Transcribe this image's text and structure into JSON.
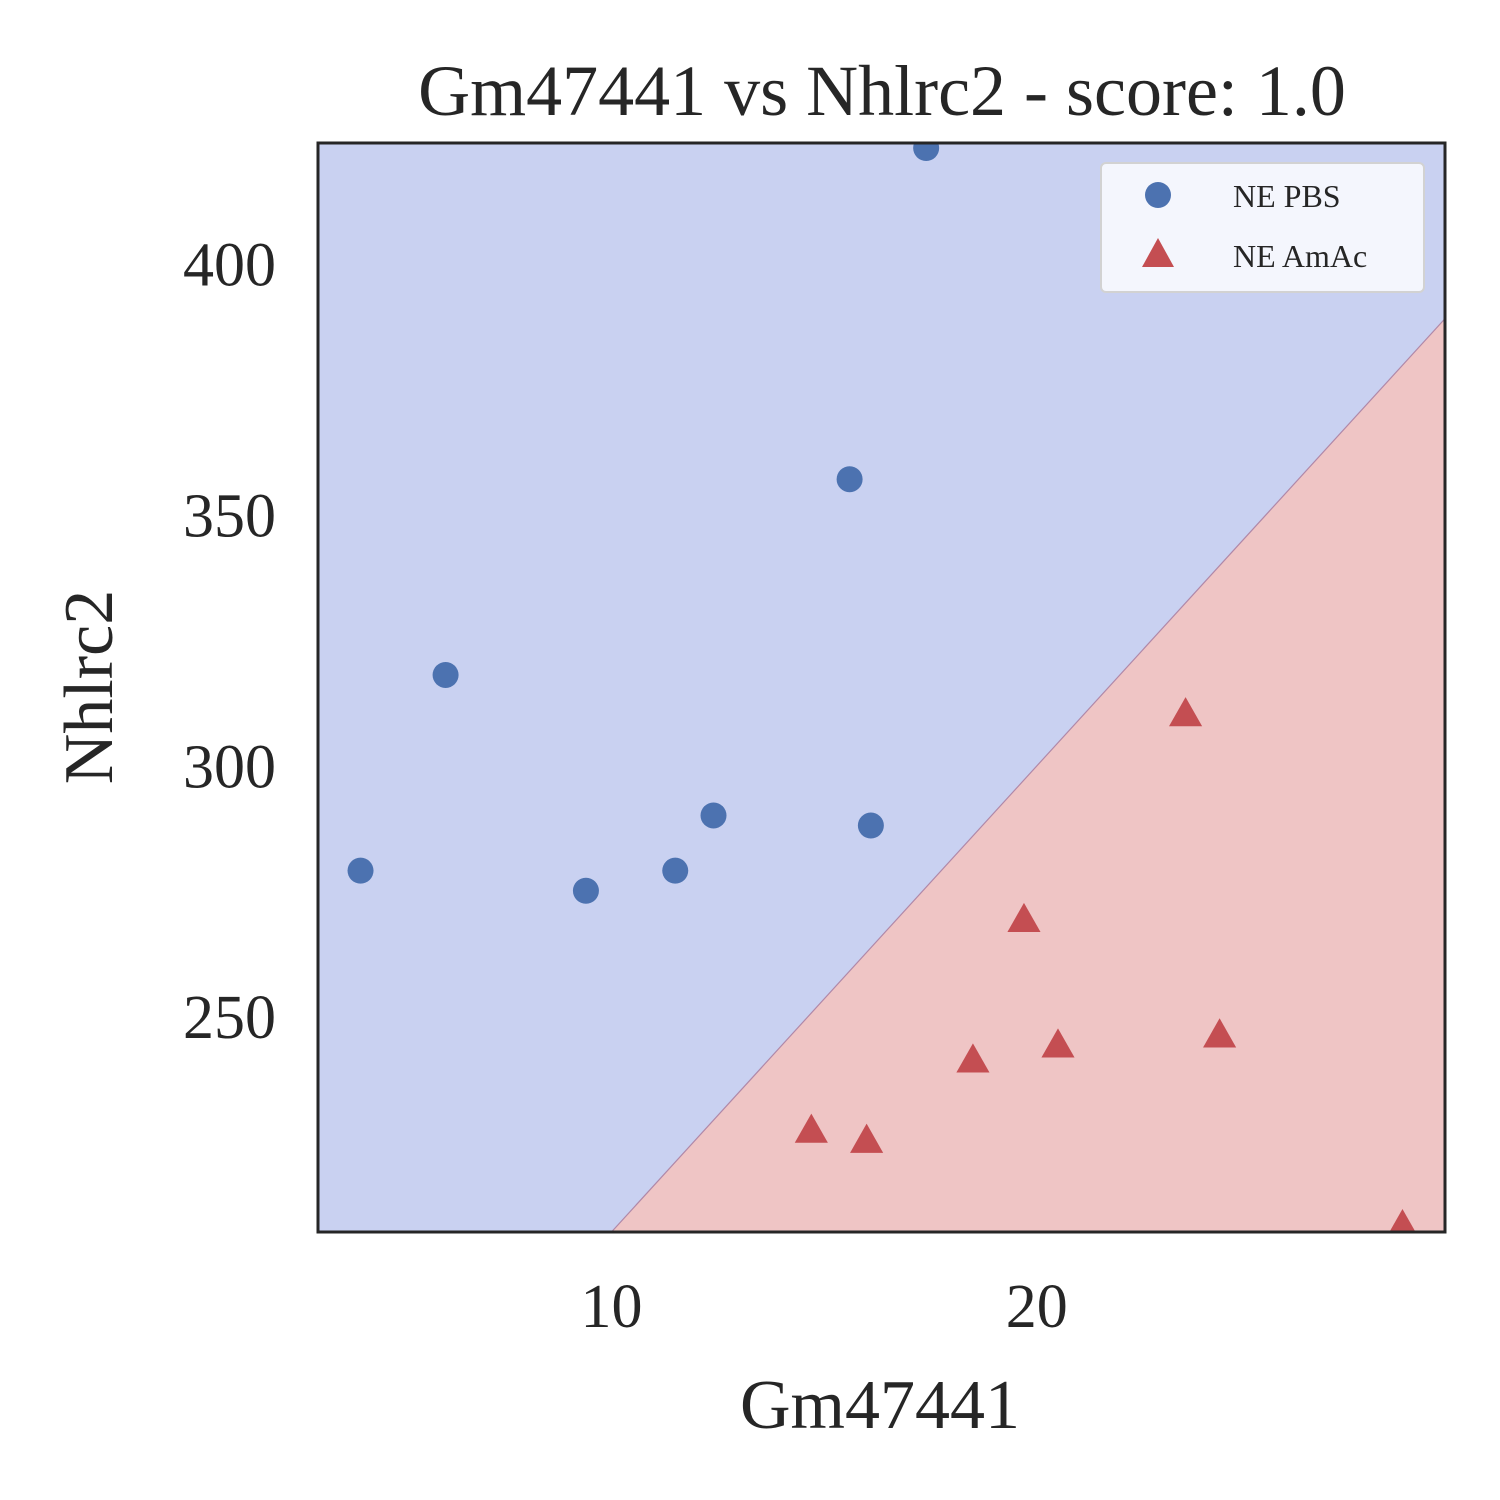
{
  "chart_data": {
    "type": "scatter",
    "title": "Gm47441 vs Nhlrc2 - score: 1.0",
    "xlabel": "Gm47441",
    "ylabel": "Nhlrc2",
    "xlim": [
      3.1,
      29.6
    ],
    "ylim": [
      207,
      424
    ],
    "xticks": [
      10,
      20
    ],
    "yticks": [
      250,
      300,
      350,
      400
    ],
    "grid": false,
    "legend_position": "top-right",
    "decision_boundary": {
      "description": "linear classifier regions",
      "line_points": [
        [
          10.0,
          207
        ],
        [
          29.6,
          389
        ]
      ],
      "regions": [
        {
          "class": "NE PBS",
          "side": "upper-left",
          "color": "#c9d1f1"
        },
        {
          "class": "NE AmAc",
          "side": "lower-right",
          "color": "#efc5c5"
        }
      ]
    },
    "series": [
      {
        "name": "NE PBS",
        "marker": "circle",
        "color": "#4c72b0",
        "points": [
          [
            4.1,
            279
          ],
          [
            6.1,
            318
          ],
          [
            9.4,
            275
          ],
          [
            11.5,
            279
          ],
          [
            12.4,
            290
          ],
          [
            15.6,
            357
          ],
          [
            16.1,
            288
          ],
          [
            17.4,
            423
          ]
        ]
      },
      {
        "name": "NE AmAc",
        "marker": "triangle",
        "color": "#c44e52",
        "points": [
          [
            14.7,
            227
          ],
          [
            16.0,
            225
          ],
          [
            18.5,
            241
          ],
          [
            19.7,
            269
          ],
          [
            20.5,
            244
          ],
          [
            23.5,
            310
          ],
          [
            24.3,
            246
          ],
          [
            28.6,
            208
          ]
        ]
      }
    ]
  }
}
